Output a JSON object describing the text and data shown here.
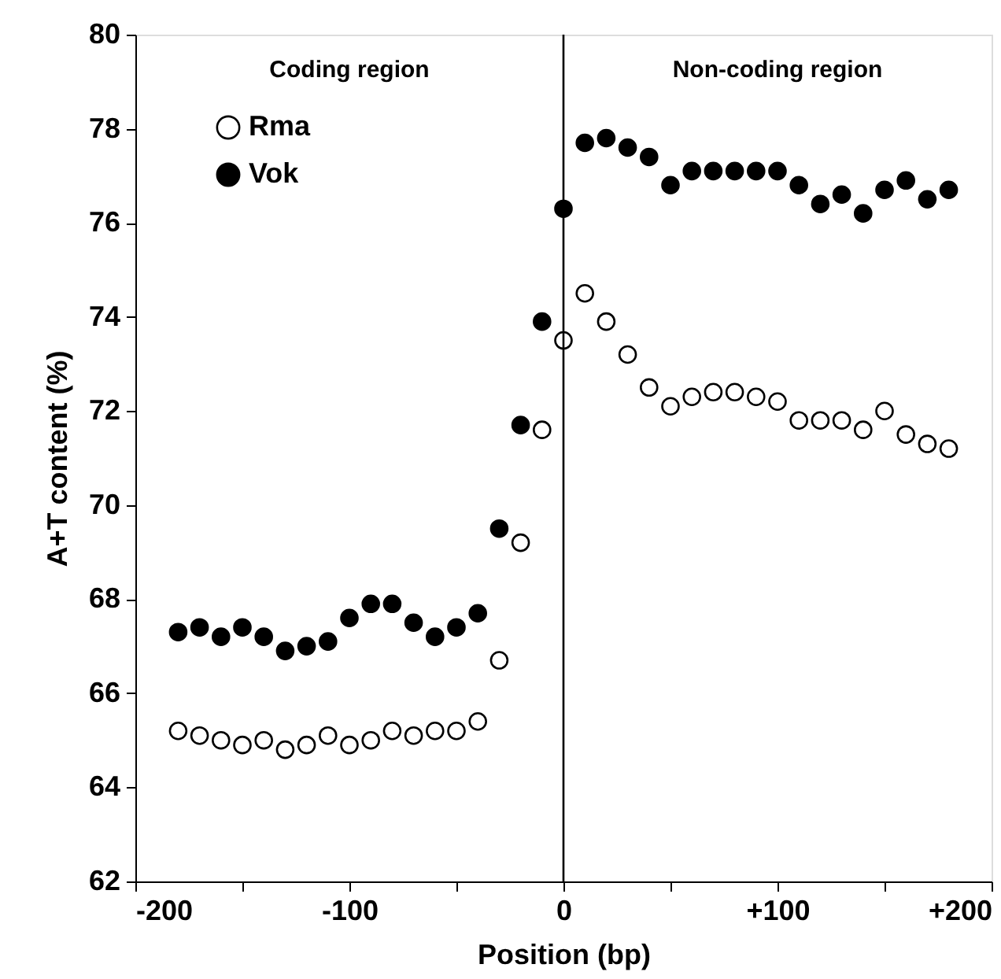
{
  "chart_data": {
    "type": "scatter",
    "xlabel": "Position (bp)",
    "ylabel": "A+T content (%)",
    "x": [
      -180,
      -170,
      -160,
      -150,
      -140,
      -130,
      -120,
      -110,
      -100,
      -90,
      -80,
      -70,
      -60,
      -50,
      -40,
      -30,
      -20,
      -10,
      0,
      10,
      20,
      30,
      40,
      50,
      60,
      70,
      80,
      90,
      100,
      110,
      120,
      130,
      140,
      150,
      160,
      170,
      180
    ],
    "series": [
      {
        "name": "Rma",
        "color": "#ffffff",
        "values": [
          65.2,
          65.1,
          65.0,
          64.9,
          65.0,
          64.8,
          64.9,
          65.1,
          64.9,
          65.0,
          65.2,
          65.1,
          65.2,
          65.2,
          65.4,
          66.7,
          69.2,
          71.6,
          73.5,
          74.5,
          73.9,
          73.2,
          72.5,
          72.1,
          72.3,
          72.4,
          72.4,
          72.3,
          72.2,
          71.8,
          71.8,
          71.8,
          71.6,
          72.0,
          71.5,
          71.3,
          71.2
        ]
      },
      {
        "name": "Vok",
        "color": "#000000",
        "values": [
          67.3,
          67.4,
          67.2,
          67.4,
          67.2,
          66.9,
          67.0,
          67.1,
          67.6,
          67.9,
          67.9,
          67.5,
          67.2,
          67.4,
          67.7,
          69.5,
          71.7,
          73.9,
          76.3,
          77.7,
          77.8,
          77.6,
          77.4,
          76.8,
          77.1,
          77.1,
          77.1,
          77.1,
          77.1,
          76.8,
          76.4,
          76.6,
          76.2,
          76.7,
          76.9,
          76.5,
          76.7
        ]
      }
    ],
    "xlim": [
      -200,
      200
    ],
    "xticks": [
      -200,
      {
        "value": -150,
        "label": null
      },
      {
        "value": -100,
        "label": "-100"
      },
      {
        "value": -50,
        "label": null
      },
      0,
      {
        "value": 50,
        "label": null
      },
      {
        "value": 100,
        "label": "+100"
      },
      {
        "value": 150,
        "label": null
      },
      {
        "value": 200,
        "label": "+200"
      }
    ],
    "ylim": [
      62,
      80
    ],
    "yticks": [
      62,
      64,
      66,
      68,
      70,
      72,
      74,
      76,
      78,
      80
    ],
    "ref_lines": [
      {
        "axis": "x",
        "value": 0,
        "color": "#000000"
      }
    ],
    "annotations": [
      "Coding region",
      "Non-coding region"
    ],
    "marker": "circle",
    "grid": false,
    "legend": "top left"
  }
}
